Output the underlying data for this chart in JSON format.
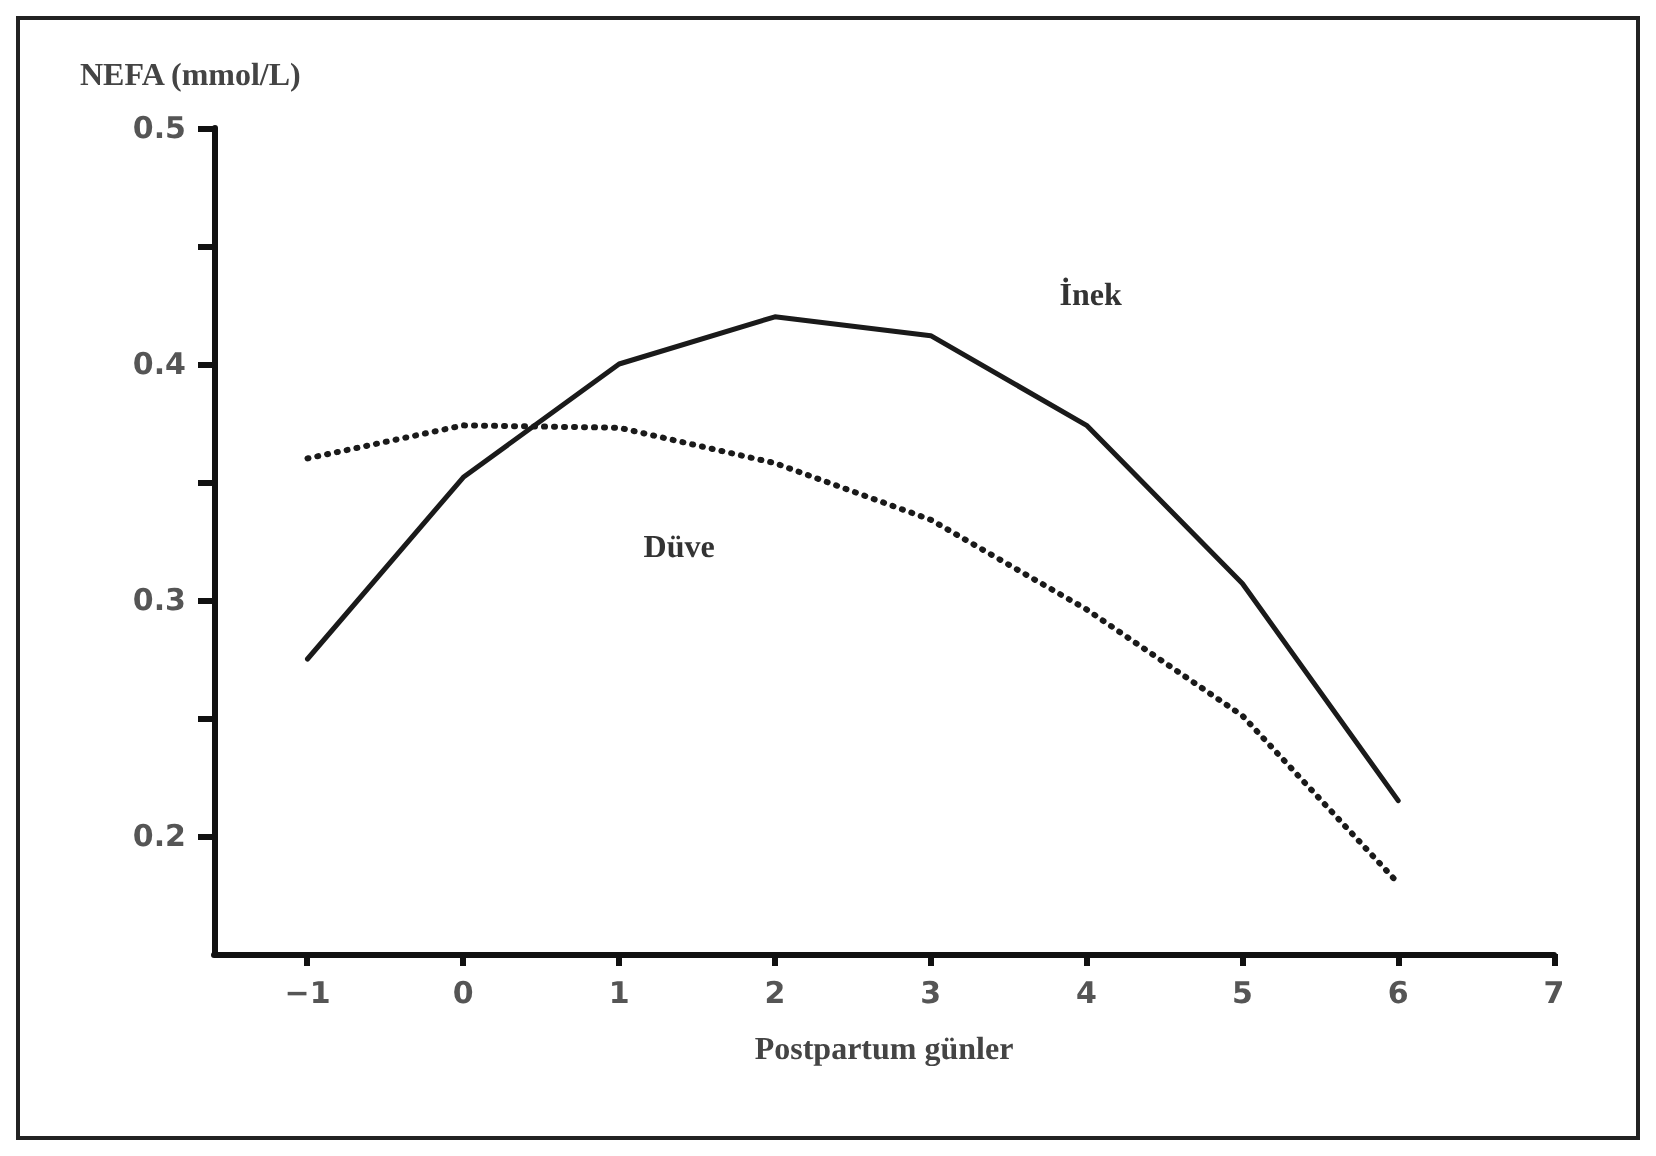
{
  "chart_data": {
    "type": "line",
    "xlabel": "Postpartum günler",
    "ylabel": "NEFA (mmol/L)",
    "x": [
      -1,
      0,
      1,
      2,
      3,
      4,
      5,
      6
    ],
    "series": [
      {
        "name": "İnek",
        "color": "#1a1a1a",
        "line_style": "solid",
        "values": [
          0.275,
          0.352,
          0.4,
          0.42,
          0.412,
          0.374,
          0.307,
          0.215
        ]
      },
      {
        "name": "Düve",
        "color": "#1a1a1a",
        "line_style": "dotted",
        "values": [
          0.36,
          0.374,
          0.373,
          0.358,
          0.334,
          0.296,
          0.251,
          0.18
        ]
      }
    ],
    "xlim": [
      -1.6,
      7
    ],
    "xticks": [
      {
        "value": -1,
        "label": "−1"
      },
      0,
      1,
      2,
      3,
      4,
      5,
      6,
      7
    ],
    "ylim": [
      0.15,
      0.5
    ],
    "yticks": [
      0.2,
      {
        "value": 0.25,
        "label": null
      },
      0.3,
      {
        "value": 0.35,
        "label": null
      },
      0.4,
      {
        "value": 0.45,
        "label": null
      },
      0.5
    ],
    "grid": false,
    "legend": false,
    "marker": "none"
  }
}
